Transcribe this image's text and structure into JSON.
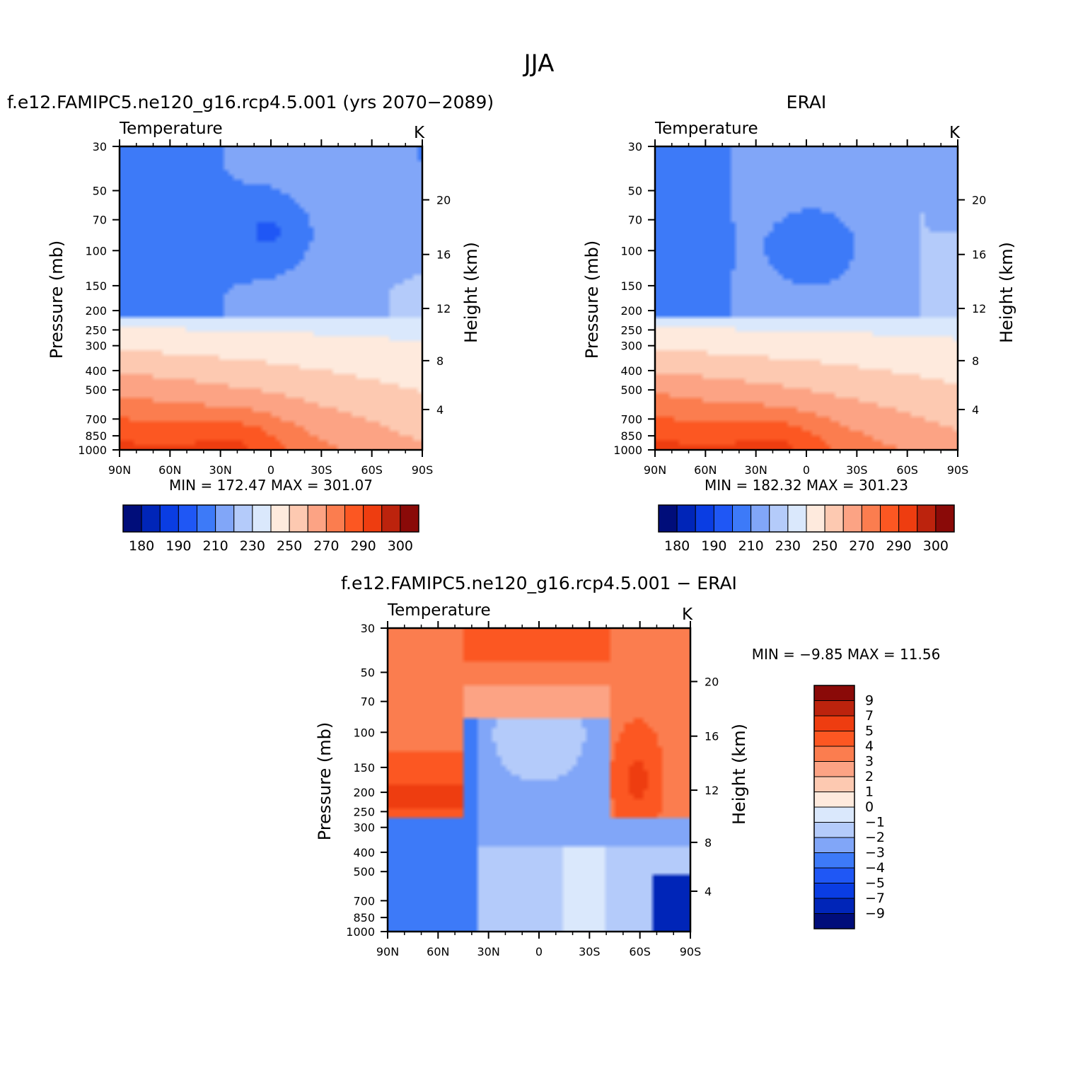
{
  "figure": {
    "title": "JJA",
    "font_color": "#000000"
  },
  "chart_data": [
    {
      "type": "heatmap",
      "id": "model",
      "title": "f.e12.FAMIPC5.ne120_g16.rcp4.5.001 (yrs 2070−2089)",
      "variable": "Temperature",
      "units": "K",
      "xlabel": "",
      "ylabel": "Pressure (mb)",
      "ylabel_right": "Height (km)",
      "x_ticks": [
        "90N",
        "60N",
        "30N",
        "0",
        "30S",
        "60S",
        "90S"
      ],
      "x_values": [
        90,
        60,
        30,
        0,
        -30,
        -60,
        -90
      ],
      "y_ticks": [
        30,
        50,
        70,
        100,
        150,
        200,
        250,
        300,
        400,
        500,
        700,
        850,
        1000
      ],
      "y_scale": "log",
      "ylim": [
        30,
        1000
      ],
      "height_ticks": [
        4,
        8,
        12,
        16,
        20
      ],
      "min_label": "MIN =",
      "min_value": "172.47",
      "max_label": "MAX =",
      "max_value": "301.07",
      "colorbar": {
        "orientation": "horizontal",
        "levels": [
          180,
          190,
          210,
          230,
          250,
          270,
          290,
          300
        ],
        "colors": [
          "#000d7a",
          "#0025b8",
          "#0a3de3",
          "#1f57f5",
          "#3d7af8",
          "#81a6f8",
          "#b4cbfa",
          "#dae8fc",
          "#feeadd",
          "#fdc9b1",
          "#fca384",
          "#fb7d4f",
          "#fc5722",
          "#ee3d10",
          "#bc230d",
          "#8a0a08"
        ]
      }
    },
    {
      "type": "heatmap",
      "id": "obs",
      "title": "ERAI",
      "variable": "Temperature",
      "units": "K",
      "xlabel": "",
      "ylabel": "Pressure (mb)",
      "ylabel_right": "Height (km)",
      "x_ticks": [
        "90N",
        "60N",
        "30N",
        "0",
        "30S",
        "60S",
        "90S"
      ],
      "x_values": [
        90,
        60,
        30,
        0,
        -30,
        -60,
        -90
      ],
      "y_ticks": [
        30,
        50,
        70,
        100,
        150,
        200,
        250,
        300,
        400,
        500,
        700,
        850,
        1000
      ],
      "y_scale": "log",
      "ylim": [
        30,
        1000
      ],
      "height_ticks": [
        4,
        8,
        12,
        16,
        20
      ],
      "min_label": "MIN =",
      "min_value": "182.32",
      "max_label": "MAX =",
      "max_value": "301.23",
      "colorbar": {
        "orientation": "horizontal",
        "levels": [
          180,
          190,
          210,
          230,
          250,
          270,
          290,
          300
        ],
        "colors": [
          "#000d7a",
          "#0025b8",
          "#0a3de3",
          "#1f57f5",
          "#3d7af8",
          "#81a6f8",
          "#b4cbfa",
          "#dae8fc",
          "#feeadd",
          "#fdc9b1",
          "#fca384",
          "#fb7d4f",
          "#fc5722",
          "#ee3d10",
          "#bc230d",
          "#8a0a08"
        ]
      }
    },
    {
      "type": "heatmap",
      "id": "diff",
      "title": "f.e12.FAMIPC5.ne120_g16.rcp4.5.001 − ERAI",
      "variable": "Temperature",
      "units": "K",
      "xlabel": "",
      "ylabel": "Pressure (mb)",
      "ylabel_right": "Height (km)",
      "x_ticks": [
        "90N",
        "60N",
        "30N",
        "0",
        "30S",
        "60S",
        "90S"
      ],
      "x_values": [
        90,
        60,
        30,
        0,
        -30,
        -60,
        -90
      ],
      "y_ticks": [
        30,
        50,
        70,
        100,
        150,
        200,
        250,
        300,
        400,
        500,
        700,
        850,
        1000
      ],
      "y_scale": "log",
      "ylim": [
        30,
        1000
      ],
      "height_ticks": [
        4,
        8,
        12,
        16,
        20
      ],
      "min_label": "MIN =",
      "min_value": "−9.85",
      "max_label": "MAX =",
      "max_value": "11.56",
      "colorbar": {
        "orientation": "vertical",
        "levels": [
          "9",
          "7",
          "5",
          "4",
          "3",
          "2",
          "1",
          "0",
          "−1",
          "−2",
          "−3",
          "−4",
          "−5",
          "−7",
          "−9"
        ],
        "colors": [
          "#8a0a08",
          "#bc230d",
          "#ee3d10",
          "#fc5722",
          "#fb7d4f",
          "#fca384",
          "#fdc9b1",
          "#feeadd",
          "#dae8fc",
          "#b4cbfa",
          "#81a6f8",
          "#3d7af8",
          "#1f57f5",
          "#0a3de3",
          "#0025b8",
          "#000d7a"
        ]
      }
    }
  ]
}
